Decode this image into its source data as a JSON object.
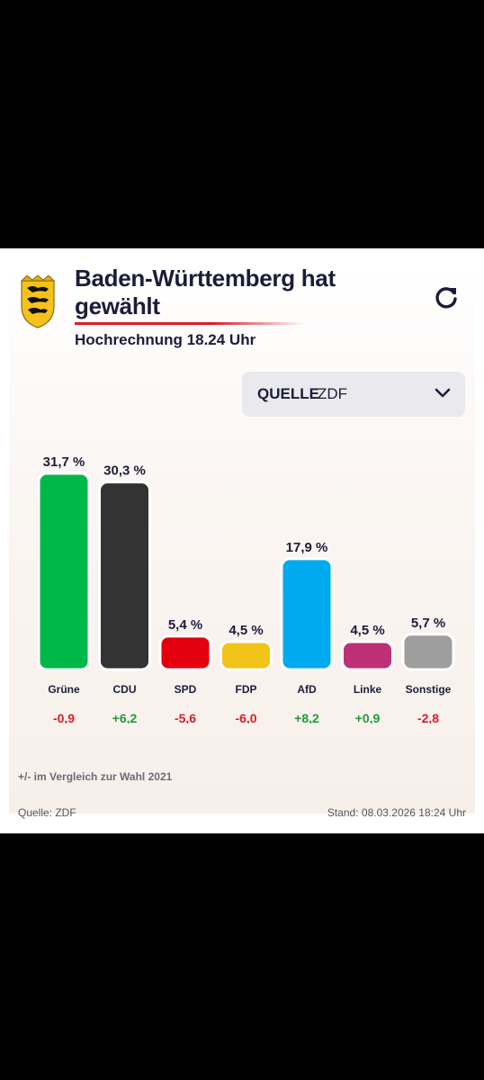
{
  "header": {
    "title": "Baden-Württemberg hat gewählt",
    "subtitle": "Hochrechnung 18.24 Uhr"
  },
  "source_select": {
    "label": "QUELLE",
    "value": "ZDF"
  },
  "icons": {
    "crest": "coat-of-arms-icon",
    "refresh": "refresh-icon",
    "chevron": "chevron-down-icon"
  },
  "chart_data": {
    "type": "bar",
    "categories": [
      "Grüne",
      "CDU",
      "SPD",
      "FDP",
      "AfD",
      "Linke",
      "Sonstige"
    ],
    "values": [
      31.7,
      30.3,
      5.4,
      4.5,
      17.9,
      4.5,
      5.7
    ],
    "value_labels": [
      "31,7 %",
      "30,3 %",
      "5,4 %",
      "4,5 %",
      "17,9 %",
      "4,5 %",
      "5,7 %"
    ],
    "changes": [
      -0.9,
      6.2,
      -5.6,
      -6.0,
      8.2,
      0.9,
      -2.8
    ],
    "change_labels": [
      "-0,9",
      "+6,2",
      "-5,6",
      "-6,0",
      "+8,2",
      "+0,9",
      "-2,8"
    ],
    "colors": [
      "#00b84a",
      "#333333",
      "#e3000f",
      "#f2c318",
      "#00aaee",
      "#be3075",
      "#9e9e9e"
    ],
    "change_colors": {
      "positive": "#1a9e3a",
      "negative": "#d81e2b"
    },
    "ylim": [
      0,
      31.7
    ],
    "grid": false
  },
  "footer": {
    "note": "+/- im Vergleich zur Wahl 2021",
    "source": "Quelle: ZDF",
    "stand": "Stand: 08.03.2026 18:24 Uhr"
  }
}
